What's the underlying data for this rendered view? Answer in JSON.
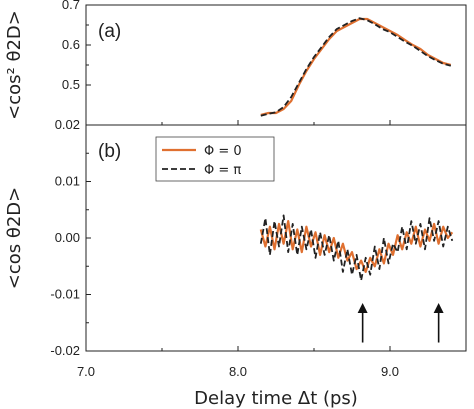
{
  "chart_data": [
    {
      "panel": "(a)",
      "type": "line",
      "title": "",
      "ylabel": "<cos² θ2D>",
      "xlim": [
        7.0,
        9.5
      ],
      "ylim": [
        0.4,
        0.7
      ],
      "yticks": [
        "0.7",
        "0.6",
        "0.5"
      ],
      "series": [
        {
          "name": "Φ = 0",
          "color": "#e07030",
          "style": "solid",
          "x": [
            8.15,
            8.2,
            8.25,
            8.3,
            8.35,
            8.4,
            8.45,
            8.5,
            8.55,
            8.6,
            8.65,
            8.7,
            8.75,
            8.8,
            8.85,
            8.9,
            8.95,
            9.0,
            9.05,
            9.1,
            9.15,
            9.2,
            9.25,
            9.3,
            9.35,
            9.4
          ],
          "y": [
            0.425,
            0.43,
            0.43,
            0.44,
            0.46,
            0.5,
            0.535,
            0.565,
            0.59,
            0.615,
            0.635,
            0.645,
            0.655,
            0.665,
            0.665,
            0.655,
            0.645,
            0.635,
            0.625,
            0.612,
            0.6,
            0.59,
            0.575,
            0.565,
            0.555,
            0.55
          ]
        },
        {
          "name": "Φ = π",
          "color": "#222222",
          "style": "dashed",
          "x": [
            8.15,
            8.2,
            8.25,
            8.3,
            8.35,
            8.4,
            8.45,
            8.5,
            8.55,
            8.6,
            8.65,
            8.7,
            8.75,
            8.8,
            8.85,
            8.9,
            8.95,
            9.0,
            9.05,
            9.1,
            9.15,
            9.2,
            9.25,
            9.3,
            9.35,
            9.4
          ],
          "y": [
            0.423,
            0.428,
            0.432,
            0.445,
            0.47,
            0.505,
            0.54,
            0.57,
            0.595,
            0.62,
            0.64,
            0.65,
            0.66,
            0.667,
            0.662,
            0.652,
            0.64,
            0.632,
            0.62,
            0.608,
            0.598,
            0.585,
            0.572,
            0.562,
            0.553,
            0.548
          ]
        }
      ]
    },
    {
      "panel": "(b)",
      "type": "line",
      "title": "",
      "xlabel": "Delay time Δt (ps)",
      "ylabel": "<cos θ2D>",
      "xlim": [
        7.0,
        9.5
      ],
      "ylim": [
        -0.02,
        0.02
      ],
      "yticks": [
        "0.02",
        "0.01",
        "0.00",
        "-0.01",
        "-0.02"
      ],
      "xticks": [
        "7.0",
        "8.0",
        "9.0"
      ],
      "legend": "top-left",
      "annotations": [
        {
          "type": "arrow",
          "x": 8.82,
          "from_y": -0.0185,
          "to_y": -0.0115
        },
        {
          "type": "arrow",
          "x": 9.32,
          "from_y": -0.0185,
          "to_y": -0.0115
        }
      ],
      "series": [
        {
          "name": "Φ = 0",
          "color": "#e07030",
          "style": "solid",
          "x": [
            8.15,
            8.18,
            8.21,
            8.24,
            8.27,
            8.3,
            8.33,
            8.36,
            8.39,
            8.42,
            8.45,
            8.48,
            8.51,
            8.54,
            8.57,
            8.6,
            8.63,
            8.66,
            8.69,
            8.72,
            8.75,
            8.78,
            8.81,
            8.84,
            8.87,
            8.9,
            8.93,
            8.96,
            8.99,
            9.02,
            9.05,
            9.08,
            9.11,
            9.14,
            9.17,
            9.2,
            9.23,
            9.26,
            9.29,
            9.32,
            9.35,
            9.38,
            9.41
          ],
          "y": [
            0.0015,
            -0.0015,
            0.002,
            -0.002,
            0.0025,
            -0.001,
            0.003,
            -0.002,
            0.0015,
            -0.0025,
            0.002,
            -0.0015,
            0.001,
            -0.003,
            0.0005,
            -0.0025,
            0.0,
            -0.0035,
            -0.001,
            -0.004,
            -0.0025,
            -0.0055,
            -0.004,
            -0.006,
            -0.0035,
            -0.005,
            -0.002,
            -0.0045,
            -0.001,
            -0.003,
            0.0005,
            -0.002,
            0.001,
            -0.001,
            0.002,
            -0.0015,
            0.0015,
            -0.0005,
            0.0025,
            -0.001,
            0.002,
            0.0,
            0.001
          ]
        },
        {
          "name": "Φ = π",
          "color": "#222222",
          "style": "dashed",
          "x": [
            8.15,
            8.18,
            8.21,
            8.24,
            8.27,
            8.3,
            8.33,
            8.36,
            8.39,
            8.42,
            8.45,
            8.48,
            8.51,
            8.54,
            8.57,
            8.6,
            8.63,
            8.66,
            8.69,
            8.72,
            8.75,
            8.78,
            8.81,
            8.84,
            8.87,
            8.9,
            8.93,
            8.96,
            8.99,
            9.02,
            9.05,
            9.08,
            9.11,
            9.14,
            9.17,
            9.2,
            9.23,
            9.26,
            9.29,
            9.32,
            9.35,
            9.38,
            9.41
          ],
          "y": [
            -0.001,
            0.0035,
            -0.003,
            0.003,
            -0.0015,
            0.004,
            -0.0025,
            0.0025,
            -0.003,
            0.002,
            -0.002,
            0.0015,
            -0.0035,
            0.001,
            -0.003,
            0.0005,
            -0.004,
            -0.0005,
            -0.006,
            -0.002,
            -0.0065,
            -0.003,
            -0.0075,
            -0.0035,
            -0.0065,
            -0.0015,
            -0.0055,
            0.0,
            -0.0045,
            -0.001,
            -0.0025,
            0.002,
            -0.002,
            0.003,
            -0.001,
            0.0025,
            -0.002,
            0.0035,
            -0.0005,
            0.003,
            -0.0015,
            0.002,
            -0.0005
          ]
        }
      ]
    }
  ]
}
